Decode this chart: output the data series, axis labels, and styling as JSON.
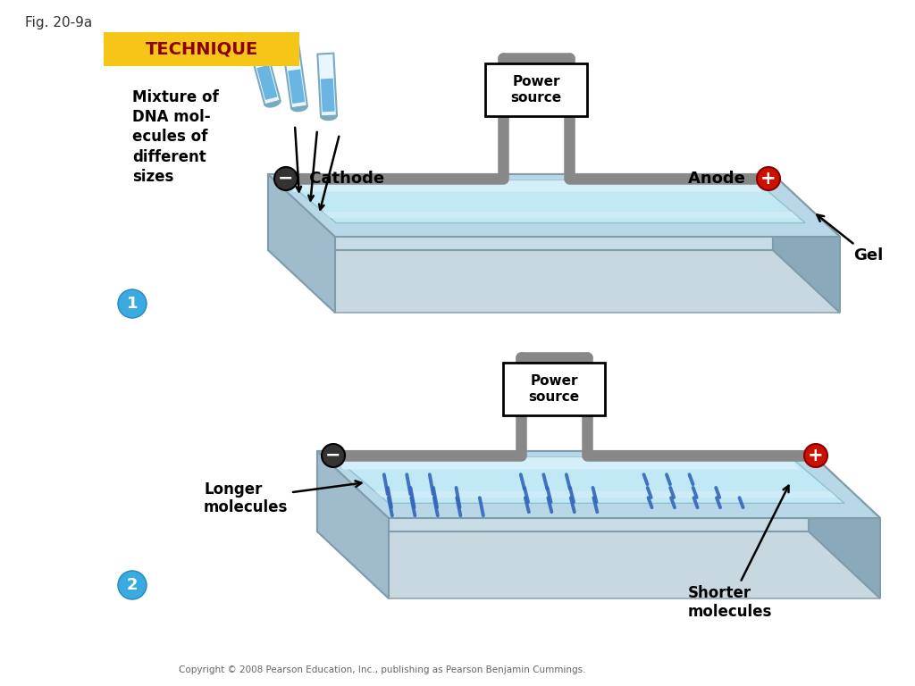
{
  "fig_label": "Fig. 20-9a",
  "technique_text": "TECHNIQUE",
  "technique_bg": "#F5C518",
  "technique_fg": "#8B0000",
  "bg_color": "#FFFFFF",
  "panel1": {
    "mixture_label": "Mixture of\nDNA mol-\necules of\ndifferent\nsizes",
    "cathode_label": "Cathode",
    "anode_label": "Anode",
    "power_label": "Power\nsource",
    "gel_label": "Gel"
  },
  "panel2": {
    "longer_label": "Longer\nmolecules",
    "shorter_label": "Shorter\nmolecules",
    "power_label": "Power\nsource"
  },
  "wire_color": "#888888",
  "wire_dark": "#666666",
  "cathode_color": "#333333",
  "anode_color": "#CC1100",
  "band_color": "#3366BB",
  "tray_top": "#B8D8E8",
  "tray_side_front": "#C8DCE8",
  "tray_side_left": "#A0BCCC",
  "tray_side_right": "#8AAABB",
  "tray_inner_gel": "#C0E8F5",
  "tray_inner_light": "#D8F0FA",
  "tray_edge": "#809BAA",
  "tube_body": "#E8F6FF",
  "tube_liquid": "#55AADD",
  "tube_outline": "#7AAAC0",
  "step_color": "#3AAAE0",
  "copyright": "Copyright © 2008 Pearson Education, Inc., publishing as Pearson Benjamin Cummings."
}
